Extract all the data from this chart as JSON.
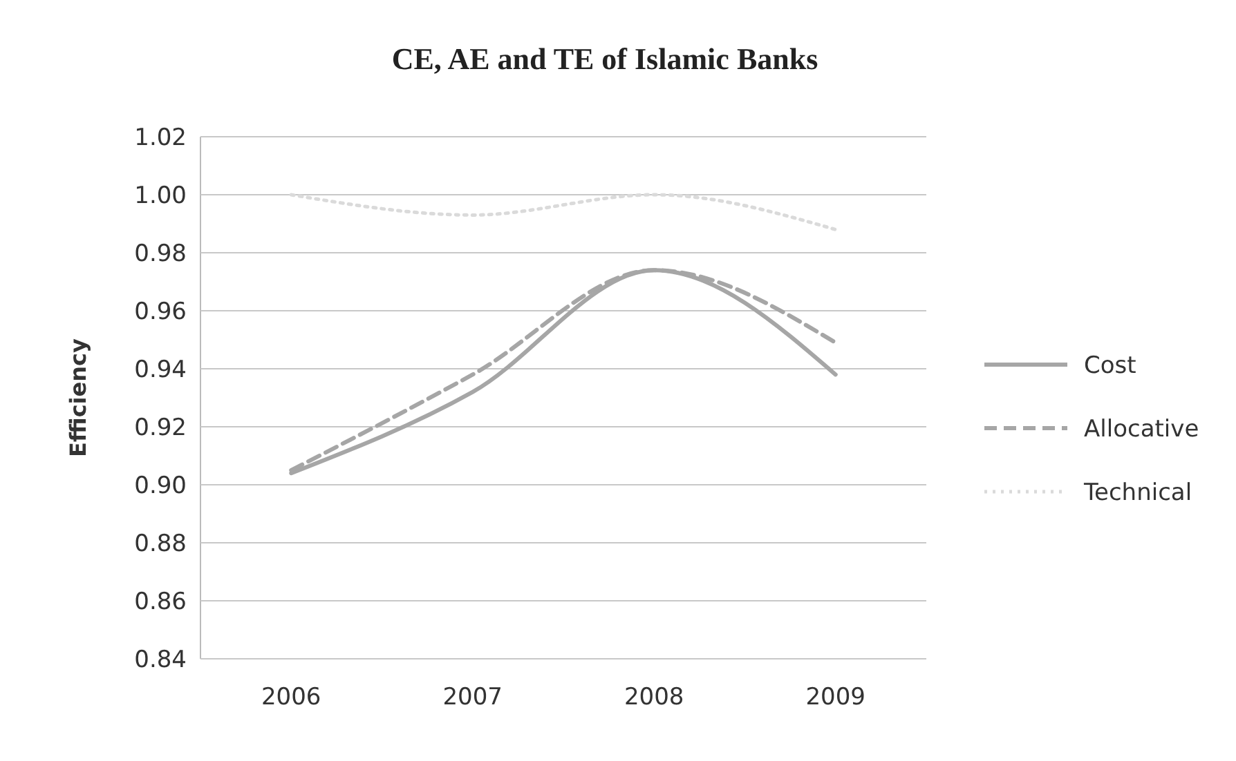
{
  "chart_data": {
    "type": "line",
    "title": "CE, AE and TE of Islamic Banks",
    "ylabel": "Efficiency",
    "categories": [
      "2006",
      "2007",
      "2008",
      "2009"
    ],
    "series": [
      {
        "name": "Cost",
        "color": "#a6a6a6",
        "line_style": "solid",
        "values": [
          0.904,
          0.932,
          0.974,
          0.938
        ]
      },
      {
        "name": "Allocative",
        "color": "#a6a6a6",
        "line_style": "dashed",
        "values": [
          0.905,
          0.938,
          0.974,
          0.949
        ]
      },
      {
        "name": "Technical",
        "color": "#dadada",
        "line_style": "dotted",
        "values": [
          1.0,
          0.993,
          1.0,
          0.988
        ]
      }
    ],
    "ylim": [
      0.84,
      1.02
    ],
    "yticks": [
      {
        "value": 0.84,
        "label": "0.84"
      },
      {
        "value": 0.86,
        "label": "0.86"
      },
      {
        "value": 0.88,
        "label": "0.88"
      },
      {
        "value": 0.9,
        "label": "0.90"
      },
      {
        "value": 0.92,
        "label": "0.92"
      },
      {
        "value": 0.94,
        "label": "0.94"
      },
      {
        "value": 0.96,
        "label": "0.96"
      },
      {
        "value": 0.98,
        "label": "0.98"
      },
      {
        "value": 1.0,
        "label": "1.00"
      },
      {
        "value": 1.02,
        "label": "1.02"
      }
    ],
    "grid": "y",
    "legend": "right",
    "marker": "none"
  }
}
